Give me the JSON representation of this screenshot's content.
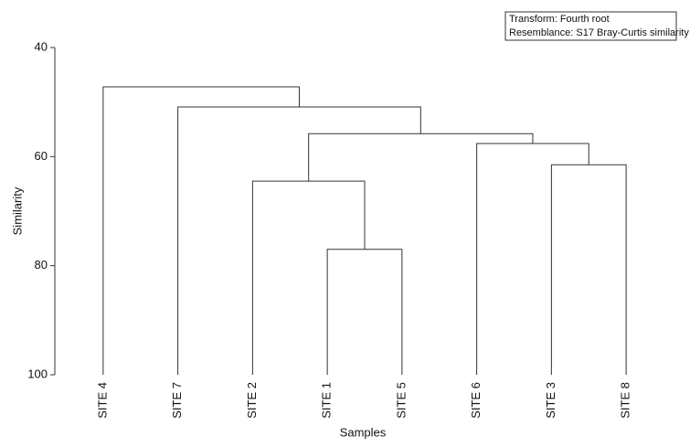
{
  "chart_data": {
    "type": "dendrogram",
    "annotations": [
      "Transform: Fourth root",
      "Resemblance: S17 Bray-Curtis similarity"
    ],
    "xlabel": "Samples",
    "ylabel": "Similarity",
    "categories": [
      "SITE 4",
      "SITE 7",
      "SITE 2",
      "SITE 1",
      "SITE 5",
      "SITE 6",
      "SITE 3",
      "SITE 8"
    ],
    "merges": [
      {
        "join": [
          3,
          4
        ],
        "value": 77.0
      },
      {
        "join": [
          6,
          7
        ],
        "value": 61.5
      },
      {
        "join": [
          2,
          8
        ],
        "value": 64.5
      },
      {
        "join": [
          5,
          9
        ],
        "value": 57.6
      },
      {
        "join": [
          10,
          11
        ],
        "value": 55.8
      },
      {
        "join": [
          1,
          12
        ],
        "value": 50.9
      },
      {
        "join": [
          0,
          13
        ],
        "value": 47.2
      }
    ],
    "color": "#333333",
    "ylim": [
      100,
      40
    ],
    "yticks": [
      40,
      60,
      80,
      100
    ]
  }
}
